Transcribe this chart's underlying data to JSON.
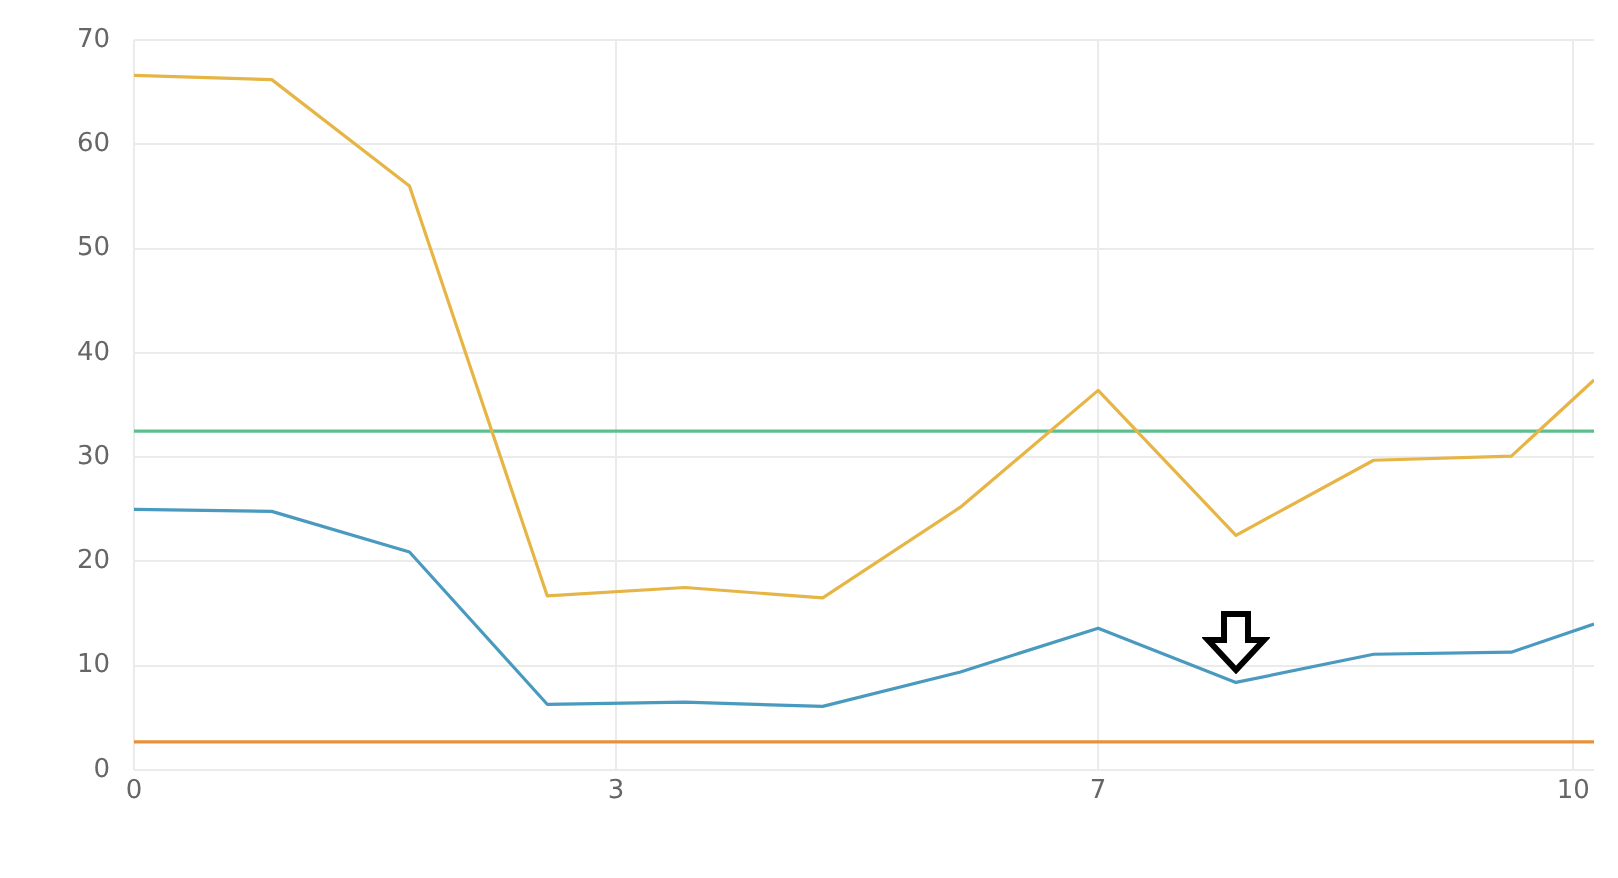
{
  "chart_data": {
    "type": "line",
    "x": [
      0,
      1,
      2,
      3,
      4,
      5,
      6,
      7,
      8,
      9,
      10,
      10.6
    ],
    "series": [
      {
        "color": "#e6b545",
        "values": [
          66.6,
          66.2,
          56.0,
          16.7,
          17.5,
          16.5,
          25.2,
          36.4,
          22.5,
          29.7,
          30.1,
          37.4
        ]
      },
      {
        "color": "#4a9ac0",
        "values": [
          25.0,
          24.8,
          20.9,
          6.3,
          6.5,
          6.1,
          9.4,
          13.6,
          8.4,
          11.1,
          11.3,
          14.0
        ]
      }
    ],
    "ref_lines": [
      {
        "axis": "y",
        "value": 32.5,
        "color": "#5dbf8e"
      },
      {
        "axis": "y",
        "value": 2.7,
        "color": "#e8913a"
      }
    ],
    "xlim": [
      0,
      10.6
    ],
    "xticks": [
      0,
      {
        "value": 3.5,
        "label": "3"
      },
      7,
      {
        "value": 10.45,
        "label": "10"
      }
    ],
    "ylim": [
      0,
      70
    ],
    "yticks": [
      0,
      10,
      20,
      30,
      40,
      50,
      60,
      70
    ],
    "grid": true,
    "legend": false,
    "marker": "none",
    "line_style": "solid"
  }
}
